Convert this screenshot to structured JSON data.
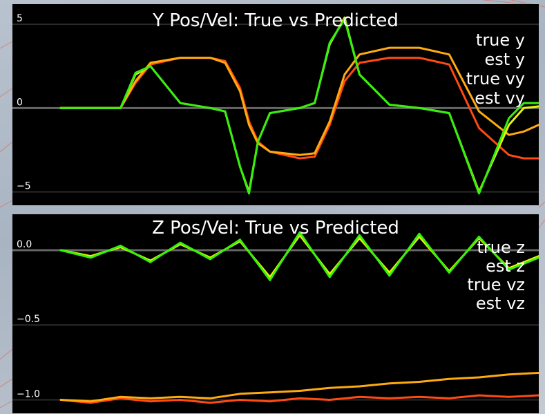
{
  "colors": {
    "true_pos": "#ff4a12",
    "est_pos": "#ffab10",
    "true_vel": "#e8f20a",
    "est_vel": "#33f00e",
    "axis_line": "#666666",
    "grid_line": "#2a2a2a",
    "panel_bg": "#000000",
    "text": "#ffffff"
  },
  "chart_data": [
    {
      "type": "line",
      "title": "Y Pos/Vel: True vs Predicted",
      "ylim": [
        -5.8,
        6.2
      ],
      "yticks": [
        {
          "value": 5,
          "label": "5"
        },
        {
          "value": 0,
          "label": "0"
        },
        {
          "value": -5,
          "label": "−5"
        }
      ],
      "x": [
        0,
        1,
        2,
        2.5,
        3,
        4,
        5,
        5.5,
        6,
        6.3,
        6.6,
        7,
        8,
        8.5,
        9,
        9.5,
        10,
        11,
        12,
        13,
        14,
        15,
        15.5,
        16
      ],
      "series": [
        {
          "name": "true y",
          "color_key": "true_pos",
          "values": [
            0,
            0,
            0,
            1.5,
            2.6,
            3.0,
            3.0,
            2.8,
            1.2,
            -0.8,
            -2.0,
            -2.6,
            -3.0,
            -2.9,
            -1.0,
            1.6,
            2.7,
            3.0,
            3.0,
            2.6,
            -1.2,
            -2.8,
            -3.0,
            -3.0
          ]
        },
        {
          "name": "est y",
          "color_key": "est_pos",
          "values": [
            0,
            0,
            0,
            1.6,
            2.7,
            3.0,
            3.0,
            2.7,
            1.0,
            -1.0,
            -2.1,
            -2.6,
            -2.8,
            -2.7,
            -0.8,
            2.0,
            3.2,
            3.6,
            3.6,
            3.2,
            -0.2,
            -1.6,
            -1.4,
            -1.0
          ]
        },
        {
          "name": "true vy",
          "color_key": "true_vel",
          "values": [
            0,
            0,
            0,
            2.0,
            2.5,
            0.3,
            0,
            -0.2,
            -3.5,
            -5.0,
            -2.0,
            -0.3,
            0,
            0.3,
            3.8,
            5.4,
            2.0,
            0.2,
            0,
            -0.3,
            -5.0,
            -1.0,
            0,
            0.1
          ]
        },
        {
          "name": "est vy",
          "color_key": "est_vel",
          "values": [
            0,
            0,
            0,
            2.1,
            2.5,
            0.3,
            0,
            -0.2,
            -3.5,
            -5.1,
            -2.0,
            -0.3,
            0,
            0.3,
            3.9,
            5.3,
            2.0,
            0.2,
            0,
            -0.3,
            -5.1,
            -0.6,
            0.3,
            0.3
          ]
        }
      ]
    },
    {
      "type": "line",
      "title": "Z Pos/Vel: True vs Predicted",
      "ylim": [
        -1.09,
        0.24
      ],
      "yticks": [
        {
          "value": 0.0,
          "label": "0.0"
        },
        {
          "value": -0.5,
          "label": "−0.5"
        },
        {
          "value": -1.0,
          "label": "−1.0"
        }
      ],
      "x": [
        0,
        1,
        2,
        3,
        4,
        5,
        6,
        7,
        8,
        9,
        10,
        11,
        12,
        13,
        14,
        15,
        16
      ],
      "series": [
        {
          "name": "true z",
          "color_key": "true_pos",
          "values": [
            -1.0,
            -1.02,
            -0.99,
            -1.01,
            -1.0,
            -1.02,
            -1.0,
            -1.01,
            -0.99,
            -1.0,
            -0.98,
            -0.99,
            -0.98,
            -0.99,
            -0.97,
            -0.98,
            -0.97
          ]
        },
        {
          "name": "est z",
          "color_key": "est_pos",
          "values": [
            -1.0,
            -1.01,
            -0.98,
            -0.99,
            -0.98,
            -0.99,
            -0.96,
            -0.95,
            -0.94,
            -0.92,
            -0.91,
            -0.89,
            -0.88,
            -0.86,
            -0.85,
            -0.83,
            -0.82
          ]
        },
        {
          "name": "true vz",
          "color_key": "true_vel",
          "values": [
            0,
            -0.04,
            0.02,
            -0.07,
            0.04,
            -0.05,
            0.06,
            -0.18,
            0.1,
            -0.16,
            0.08,
            -0.15,
            0.09,
            -0.14,
            0.08,
            -0.12,
            -0.04
          ]
        },
        {
          "name": "est vz",
          "color_key": "est_vel",
          "values": [
            0,
            -0.05,
            0.03,
            -0.08,
            0.05,
            -0.06,
            0.07,
            -0.2,
            0.12,
            -0.18,
            0.1,
            -0.17,
            0.11,
            -0.15,
            0.09,
            -0.13,
            -0.05
          ]
        }
      ]
    }
  ]
}
